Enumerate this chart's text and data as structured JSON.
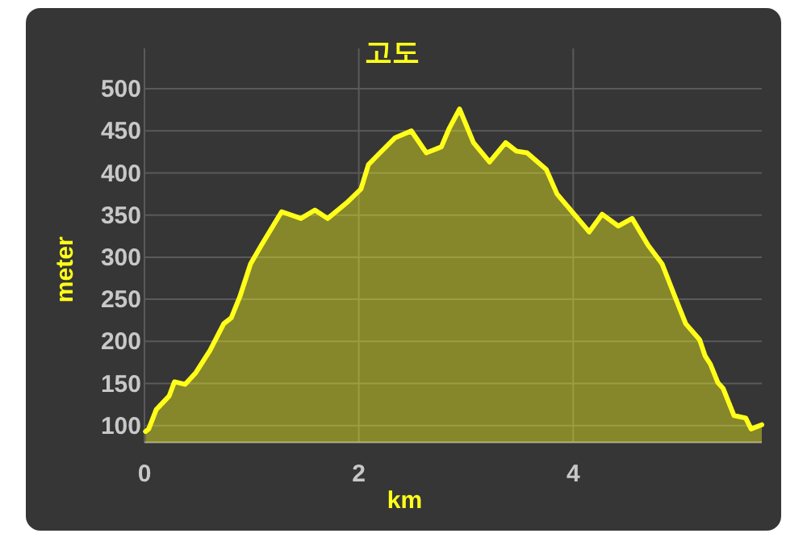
{
  "chart_data": {
    "type": "area",
    "title": "고도",
    "xlabel": "km",
    "ylabel": "meter",
    "x": [
      0.01,
      0.04,
      0.11,
      0.23,
      0.28,
      0.38,
      0.48,
      0.61,
      0.74,
      0.81,
      0.89,
      0.99,
      1.09,
      1.28,
      1.46,
      1.59,
      1.71,
      1.89,
      2.02,
      2.09,
      2.19,
      2.34,
      2.49,
      2.63,
      2.77,
      2.84,
      2.94,
      3.07,
      3.22,
      3.37,
      3.47,
      3.57,
      3.75,
      3.85,
      4.15,
      4.27,
      4.42,
      4.55,
      4.7,
      4.83,
      4.95,
      5.05,
      5.18,
      5.23,
      5.28,
      5.35,
      5.4,
      5.5,
      5.61,
      5.66,
      5.76
    ],
    "series": [
      {
        "color": "#ffff1a",
        "values": [
          93,
          96,
          119,
          135,
          152,
          149,
          163,
          189,
          221,
          228,
          253,
          292,
          314,
          354,
          346,
          356,
          346,
          365,
          381,
          410,
          423,
          442,
          450,
          424,
          431,
          452,
          476,
          436,
          413,
          436,
          426,
          424,
          404,
          375,
          330,
          351,
          337,
          346,
          314,
          292,
          253,
          221,
          202,
          183,
          173,
          151,
          144,
          112,
          109,
          96,
          101
        ]
      }
    ],
    "xlim": [
      0,
      5.76
    ],
    "ylim": [
      80,
      548
    ],
    "xticks": [
      0,
      2,
      4
    ],
    "yticks": [
      100,
      150,
      200,
      250,
      300,
      350,
      400,
      450,
      500
    ],
    "grid": true
  }
}
